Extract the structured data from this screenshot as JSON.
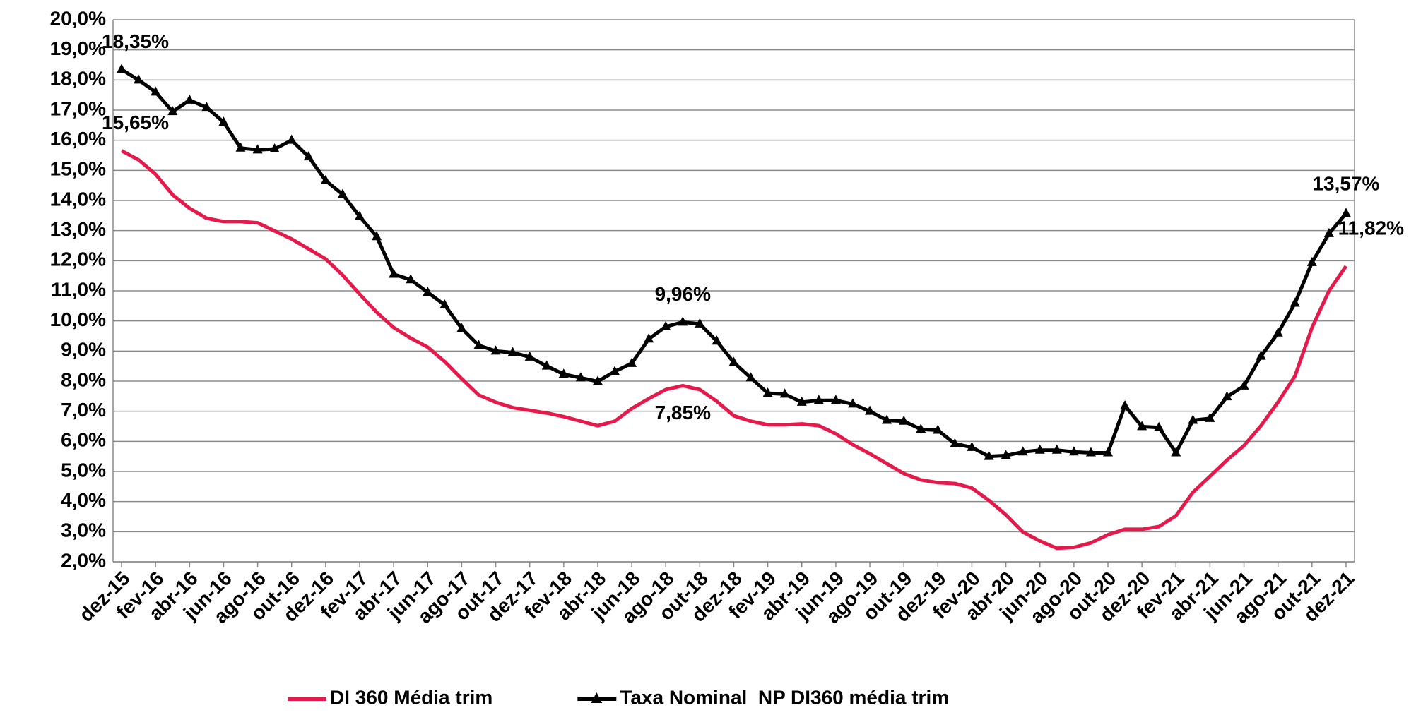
{
  "chart_data": {
    "type": "line",
    "categories": [
      "dez-15",
      null,
      "fev-16",
      null,
      "abr-16",
      null,
      "jun-16",
      null,
      "ago-16",
      null,
      "out-16",
      null,
      "dez-16",
      null,
      "fev-17",
      null,
      "abr-17",
      null,
      "jun-17",
      null,
      "ago-17",
      null,
      "out-17",
      null,
      "dez-17",
      null,
      "fev-18",
      null,
      "abr-18",
      null,
      "jun-18",
      null,
      "ago-18",
      null,
      "out-18",
      null,
      "dez-18",
      null,
      "fev-19",
      null,
      "abr-19",
      null,
      "jun-19",
      null,
      "ago-19",
      null,
      "out-19",
      null,
      "dez-19",
      null,
      "fev-20",
      null,
      "abr-20",
      null,
      "jun-20",
      null,
      "ago-20",
      null,
      "out-20",
      null,
      "dez-20",
      null,
      "fev-21",
      null,
      "abr-21",
      null,
      "jun-21",
      null,
      "ago-21",
      null,
      "out-21",
      null,
      "dez-21"
    ],
    "series": [
      {
        "name": "DI 360 Média trim",
        "color": "#e6194b",
        "label_color": "#ff0000",
        "values": [
          15.65,
          15.35,
          14.87,
          14.19,
          13.74,
          13.41,
          13.3,
          13.3,
          13.26,
          12.99,
          12.72,
          12.39,
          12.06,
          11.52,
          10.89,
          10.29,
          9.78,
          9.43,
          9.13,
          8.65,
          8.08,
          7.54,
          7.3,
          7.12,
          7.03,
          6.94,
          6.82,
          6.67,
          6.52,
          6.67,
          7.09,
          7.42,
          7.72,
          7.85,
          7.72,
          7.33,
          6.85,
          6.67,
          6.55,
          6.55,
          6.58,
          6.52,
          6.25,
          5.89,
          5.59,
          5.26,
          4.93,
          4.72,
          4.63,
          4.6,
          4.45,
          4.04,
          3.56,
          2.99,
          2.69,
          2.45,
          2.48,
          2.63,
          2.9,
          3.08,
          3.08,
          3.17,
          3.53,
          4.31,
          4.84,
          5.38,
          5.86,
          6.52,
          7.3,
          8.17,
          9.78,
          11.0,
          11.82
        ],
        "value_labels": [
          "15,65%",
          null,
          null,
          null,
          null,
          null,
          null,
          null,
          null,
          null,
          null,
          null,
          null,
          null,
          null,
          null,
          null,
          null,
          null,
          null,
          null,
          null,
          null,
          null,
          null,
          null,
          null,
          null,
          null,
          null,
          null,
          null,
          null,
          "7,85%",
          null,
          null,
          null,
          null,
          null,
          null,
          null,
          null,
          null,
          null,
          null,
          null,
          null,
          null,
          null,
          null,
          null,
          null,
          null,
          null,
          null,
          null,
          null,
          null,
          null,
          null,
          null,
          null,
          null,
          null,
          null,
          null,
          null,
          null,
          null,
          null,
          null,
          null,
          "11,82%"
        ]
      },
      {
        "name": "Taxa Nominal  NP DI360 média trim",
        "color": "#000000",
        "label_color": "#000000",
        "marker": "triangle",
        "values": [
          18.35,
          18.0,
          17.6,
          16.95,
          17.33,
          17.09,
          16.6,
          15.74,
          15.68,
          15.71,
          16.0,
          15.45,
          14.66,
          14.2,
          13.47,
          12.8,
          11.55,
          11.37,
          10.95,
          10.53,
          9.75,
          9.19,
          9.0,
          8.95,
          8.8,
          8.5,
          8.23,
          8.11,
          7.99,
          8.32,
          8.59,
          9.4,
          9.81,
          9.96,
          9.9,
          9.33,
          8.62,
          8.11,
          7.6,
          7.57,
          7.3,
          7.36,
          7.36,
          7.24,
          7.0,
          6.7,
          6.67,
          6.4,
          6.37,
          5.92,
          5.8,
          5.5,
          5.53,
          5.65,
          5.71,
          5.71,
          5.65,
          5.62,
          5.62,
          7.18,
          6.49,
          6.46,
          5.62,
          6.7,
          6.76,
          7.48,
          7.84,
          8.83,
          9.6,
          10.59,
          11.94,
          12.9,
          13.57
        ],
        "value_labels": [
          "18,35%",
          null,
          null,
          null,
          null,
          null,
          null,
          null,
          null,
          null,
          null,
          null,
          null,
          null,
          null,
          null,
          null,
          null,
          null,
          null,
          null,
          null,
          null,
          null,
          null,
          null,
          null,
          null,
          null,
          null,
          null,
          null,
          null,
          "9,96%",
          null,
          null,
          null,
          null,
          null,
          null,
          null,
          null,
          null,
          null,
          null,
          null,
          null,
          null,
          null,
          null,
          null,
          null,
          null,
          null,
          null,
          null,
          null,
          null,
          null,
          null,
          null,
          null,
          null,
          null,
          null,
          null,
          null,
          null,
          null,
          null,
          null,
          null,
          "13,57%"
        ]
      }
    ],
    "ylim": [
      2,
      20
    ],
    "yticks": [
      {
        "value": 2,
        "label": "2,0%"
      },
      {
        "value": 3,
        "label": "3,0%"
      },
      {
        "value": 4,
        "label": "4,0%"
      },
      {
        "value": 5,
        "label": "5,0%"
      },
      {
        "value": 6,
        "label": "6,0%"
      },
      {
        "value": 7,
        "label": "7,0%"
      },
      {
        "value": 8,
        "label": "8,0%"
      },
      {
        "value": 9,
        "label": "9,0%"
      },
      {
        "value": 10,
        "label": "10,0%"
      },
      {
        "value": 11,
        "label": "11,0%"
      },
      {
        "value": 12,
        "label": "12,0%"
      },
      {
        "value": 13,
        "label": "13,0%"
      },
      {
        "value": 14,
        "label": "14,0%"
      },
      {
        "value": 15,
        "label": "15,0%"
      },
      {
        "value": 16,
        "label": "16,0%"
      },
      {
        "value": 17,
        "label": "17,0%"
      },
      {
        "value": 18,
        "label": "18,0%"
      },
      {
        "value": 19,
        "label": "19,0%"
      },
      {
        "value": 20,
        "label": "20,0%"
      }
    ],
    "grid": true,
    "legend": "bottom"
  }
}
